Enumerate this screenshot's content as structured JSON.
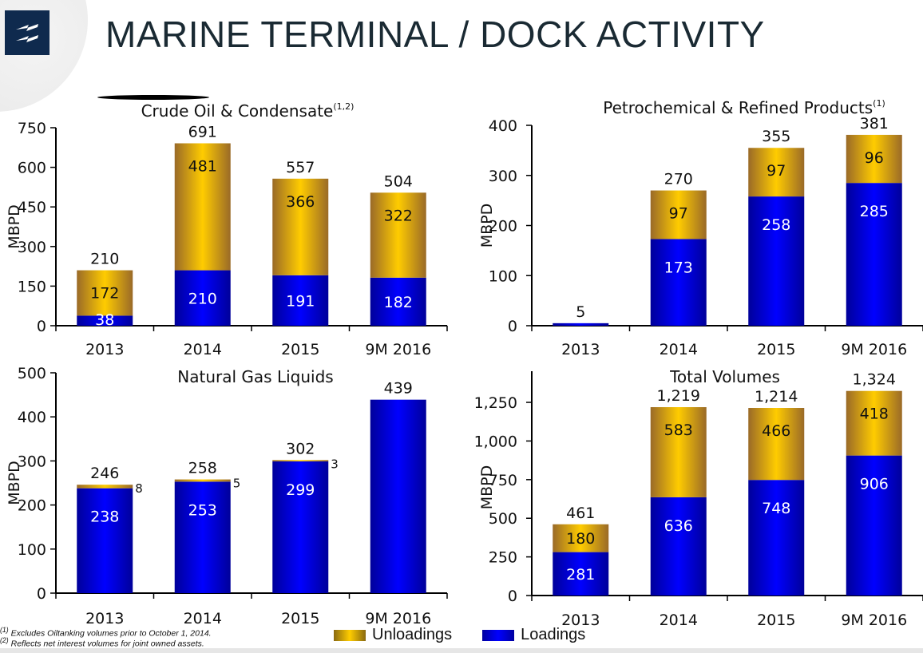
{
  "page": {
    "title": "MARINE TERMINAL / DOCK ACTIVITY",
    "logo_icon": "lightning-logo-icon",
    "footnotes": [
      {
        "marker": "(1)",
        "text": "Excludes Oiltanking volumes prior to October 1, 2014."
      },
      {
        "marker": "(2)",
        "text": "Reflects net interest volumes for joint owned assets."
      }
    ],
    "legend": [
      {
        "label": "Unloadings",
        "color": "#ffcc00"
      },
      {
        "label": "Loadings",
        "color": "#0000ff"
      }
    ]
  },
  "colors": {
    "unloadings": "#ffcc00",
    "unloadings_edge": "#9a6a28",
    "loadings": "#0000ff",
    "loadings_edge": "#00009a"
  },
  "chart_data": [
    {
      "type": "bar",
      "stacked": true,
      "title": "Crude Oil & Condensate",
      "title_sup": "(1,2)",
      "ylabel": "MBPD",
      "ylim": [
        0,
        750
      ],
      "yticks": [
        0,
        150,
        300,
        450,
        600,
        750
      ],
      "ytick_labels": [
        "0",
        "150",
        "300",
        "450",
        "600",
        "750"
      ],
      "categories": [
        "2013",
        "2014",
        "2015",
        "9M 2016"
      ],
      "series": [
        {
          "name": "Loadings",
          "values": [
            38,
            210,
            191,
            182
          ]
        },
        {
          "name": "Unloadings",
          "values": [
            172,
            481,
            366,
            322
          ]
        }
      ],
      "totals": [
        210,
        691,
        557,
        504
      ],
      "total_labels": [
        "210",
        "691",
        "557",
        "504"
      ]
    },
    {
      "type": "bar",
      "stacked": true,
      "title": "Petrochemical & Refined Products",
      "title_sup": "(1)",
      "ylabel": "MBPD",
      "ylim": [
        0,
        400
      ],
      "yticks": [
        0,
        100,
        200,
        300,
        400
      ],
      "ytick_labels": [
        "0",
        "100",
        "200",
        "300",
        "400"
      ],
      "categories": [
        "2013",
        "2014",
        "2015",
        "9M 2016"
      ],
      "series": [
        {
          "name": "Loadings",
          "values": [
            5,
            173,
            258,
            285
          ]
        },
        {
          "name": "Unloadings",
          "values": [
            0,
            97,
            97,
            96
          ]
        }
      ],
      "totals": [
        5,
        270,
        355,
        381
      ],
      "total_labels": [
        "5",
        "270",
        "355",
        "381"
      ]
    },
    {
      "type": "bar",
      "stacked": true,
      "title": "Natural Gas Liquids",
      "title_sup": "",
      "ylabel": "MBPD",
      "ylim": [
        0,
        500
      ],
      "yticks": [
        0,
        100,
        200,
        300,
        400,
        500
      ],
      "ytick_labels": [
        "0",
        "100",
        "200",
        "300",
        "400",
        "500"
      ],
      "categories": [
        "2013",
        "2014",
        "2015",
        "9M 2016"
      ],
      "series": [
        {
          "name": "Loadings",
          "values": [
            238,
            253,
            299,
            439
          ]
        },
        {
          "name": "Unloadings",
          "values": [
            8,
            5,
            3,
            0
          ]
        }
      ],
      "totals": [
        246,
        258,
        302,
        439
      ],
      "total_labels": [
        "246",
        "258",
        "302",
        "439"
      ]
    },
    {
      "type": "bar",
      "stacked": true,
      "title": "Total Volumes",
      "title_sup": "",
      "ylabel": "MBPD",
      "ylim": [
        0,
        1400
      ],
      "yticks": [
        0,
        250,
        500,
        750,
        1000,
        1250
      ],
      "ytick_labels": [
        "0",
        "250",
        "500",
        "750",
        "1,000",
        "1,250"
      ],
      "categories": [
        "2013",
        "2014",
        "2015",
        "9M 2016"
      ],
      "series": [
        {
          "name": "Loadings",
          "values": [
            281,
            636,
            748,
            906
          ]
        },
        {
          "name": "Unloadings",
          "values": [
            180,
            583,
            466,
            418
          ]
        }
      ],
      "totals": [
        461,
        1219,
        1214,
        1324
      ],
      "total_labels": [
        "461",
        "1,219",
        "1,214",
        "1,324"
      ]
    }
  ]
}
